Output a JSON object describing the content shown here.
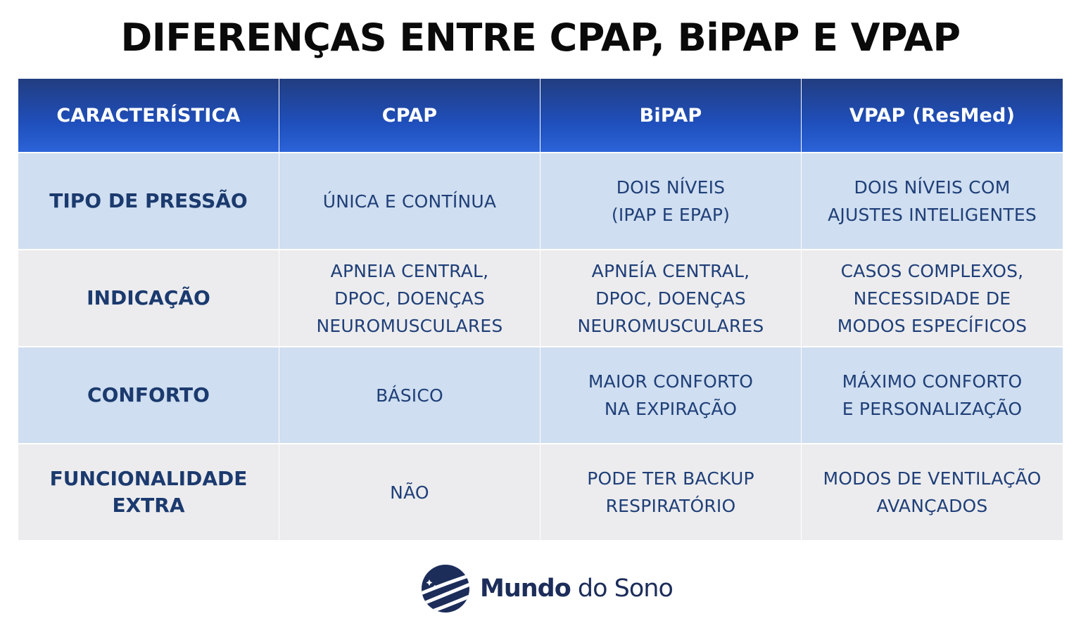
{
  "title": "DIFERENÇAS ENTRE CPAP, BiPAP E VPAP",
  "table": {
    "headers": [
      "CARACTERÍSTICA",
      "CPAP",
      "BiPAP",
      "VPAP (ResMed)"
    ],
    "rows": [
      {
        "label": "TIPO DE PRESSÃO",
        "cpap": "ÚNICA E CONTÍNUA",
        "bipap": "DOIS NÍVEIS\n(IPAP E EPAP)",
        "vpap": "DOIS NÍVEIS COM\nAJUSTES INTELIGENTES"
      },
      {
        "label": "INDICAÇÃO",
        "cpap": "APNEIA CENTRAL,\nDPOC, DOENÇAS\nNEUROMUSCULARES",
        "bipap": "APNEÍA CENTRAL,\nDPOC, DOENÇAS\nNEUROMUSCULARES",
        "vpap": "CASOS COMPLEXOS,\nNECESSIDADE DE\nMODOS ESPECÍFICOS"
      },
      {
        "label": "CONFORTO",
        "cpap": "BÁSICO",
        "bipap": "MAIOR CONFORTO\nNA EXPIRAÇÃO",
        "vpap": "MÁXIMO CONFORTO\nE PERSONALIZAÇÃO"
      },
      {
        "label": "FUNCIONALIDADE\nEXTRA",
        "cpap": "NÃO",
        "bipap": "PODE TER BACKUP\nRESPIRATÓRIO",
        "vpap": "MODOS DE VENTILAÇÃO\nAVANÇADOS"
      }
    ]
  },
  "logo": {
    "icon": "globe-moon-icon",
    "brand_bold": "Mundo",
    "brand_light": " do Sono"
  },
  "colors": {
    "header_top": "#223d80",
    "header_bottom": "#2b63d9",
    "row_blue": "#cfdef0",
    "row_grey": "#ececee",
    "label_text": "#1b3a6e",
    "value_text": "#1f3f78"
  }
}
